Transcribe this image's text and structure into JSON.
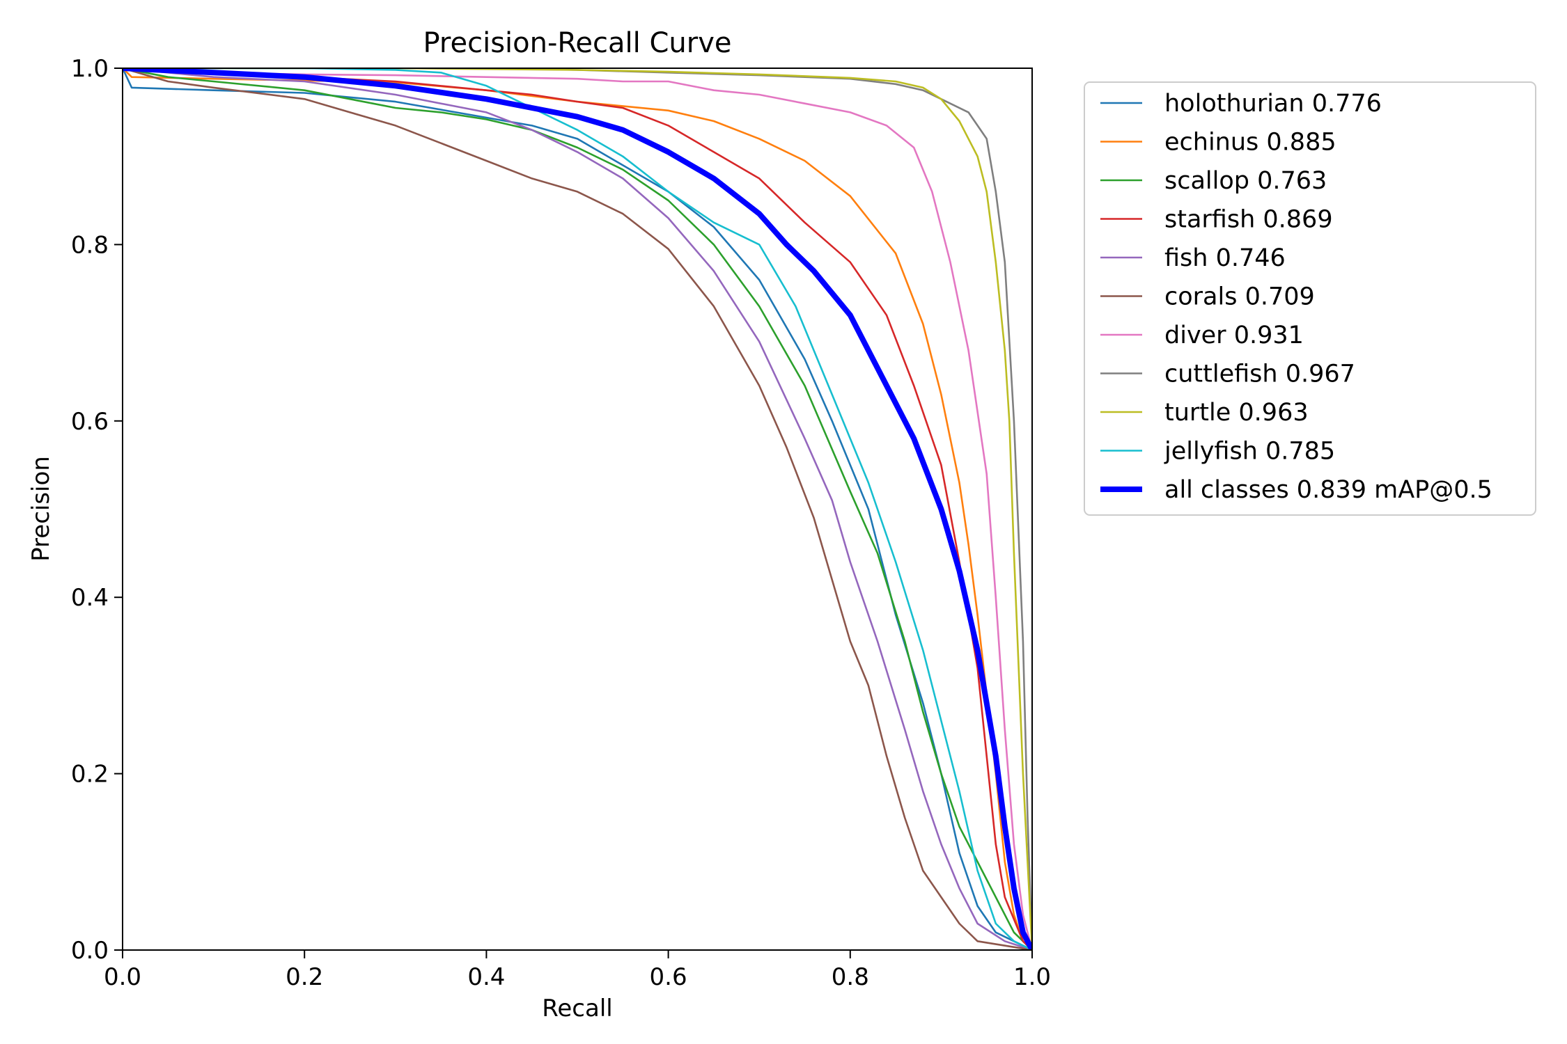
{
  "chart_data": {
    "type": "line",
    "title": "Precision-Recall Curve",
    "xlabel": "Recall",
    "ylabel": "Precision",
    "xlim": [
      0,
      1
    ],
    "ylim": [
      0,
      1
    ],
    "xticks": [
      "0.0",
      "0.2",
      "0.4",
      "0.6",
      "0.8",
      "1.0"
    ],
    "yticks": [
      "0.0",
      "0.2",
      "0.4",
      "0.6",
      "0.8",
      "1.0"
    ],
    "legend_position": "outside-right",
    "series": [
      {
        "name": "holothurian",
        "label": "holothurian 0.776",
        "color": "#1f77b4",
        "thick": false,
        "points": [
          [
            0,
            1.0
          ],
          [
            0.01,
            0.978
          ],
          [
            0.1,
            0.975
          ],
          [
            0.2,
            0.972
          ],
          [
            0.3,
            0.962
          ],
          [
            0.4,
            0.944
          ],
          [
            0.45,
            0.935
          ],
          [
            0.5,
            0.92
          ],
          [
            0.55,
            0.89
          ],
          [
            0.6,
            0.86
          ],
          [
            0.65,
            0.82
          ],
          [
            0.7,
            0.76
          ],
          [
            0.75,
            0.67
          ],
          [
            0.78,
            0.6
          ],
          [
            0.8,
            0.55
          ],
          [
            0.82,
            0.5
          ],
          [
            0.85,
            0.38
          ],
          [
            0.88,
            0.28
          ],
          [
            0.9,
            0.2
          ],
          [
            0.92,
            0.11
          ],
          [
            0.94,
            0.05
          ],
          [
            0.96,
            0.02
          ],
          [
            0.98,
            0.01
          ],
          [
            1.0,
            0.0
          ]
        ]
      },
      {
        "name": "echinus",
        "label": "echinus 0.885",
        "color": "#ff7f0e",
        "thick": false,
        "points": [
          [
            0,
            1.0
          ],
          [
            0.01,
            0.99
          ],
          [
            0.1,
            0.988
          ],
          [
            0.2,
            0.986
          ],
          [
            0.3,
            0.984
          ],
          [
            0.4,
            0.975
          ],
          [
            0.5,
            0.962
          ],
          [
            0.6,
            0.952
          ],
          [
            0.65,
            0.94
          ],
          [
            0.7,
            0.92
          ],
          [
            0.75,
            0.895
          ],
          [
            0.8,
            0.855
          ],
          [
            0.85,
            0.79
          ],
          [
            0.88,
            0.71
          ],
          [
            0.9,
            0.63
          ],
          [
            0.92,
            0.53
          ],
          [
            0.93,
            0.46
          ],
          [
            0.94,
            0.38
          ],
          [
            0.95,
            0.29
          ],
          [
            0.96,
            0.2
          ],
          [
            0.97,
            0.1
          ],
          [
            0.98,
            0.04
          ],
          [
            0.99,
            0.01
          ],
          [
            1.0,
            0.0
          ]
        ]
      },
      {
        "name": "scallop",
        "label": "scallop 0.763",
        "color": "#2ca02c",
        "thick": false,
        "points": [
          [
            0,
            1.0
          ],
          [
            0.05,
            0.99
          ],
          [
            0.1,
            0.985
          ],
          [
            0.2,
            0.975
          ],
          [
            0.25,
            0.965
          ],
          [
            0.3,
            0.955
          ],
          [
            0.35,
            0.95
          ],
          [
            0.4,
            0.942
          ],
          [
            0.45,
            0.93
          ],
          [
            0.5,
            0.91
          ],
          [
            0.55,
            0.885
          ],
          [
            0.6,
            0.85
          ],
          [
            0.65,
            0.8
          ],
          [
            0.7,
            0.73
          ],
          [
            0.75,
            0.64
          ],
          [
            0.8,
            0.52
          ],
          [
            0.83,
            0.45
          ],
          [
            0.86,
            0.35
          ],
          [
            0.88,
            0.27
          ],
          [
            0.9,
            0.2
          ],
          [
            0.92,
            0.14
          ],
          [
            0.95,
            0.08
          ],
          [
            0.98,
            0.02
          ],
          [
            1.0,
            0.0
          ]
        ]
      },
      {
        "name": "starfish",
        "label": "starfish 0.869",
        "color": "#d62728",
        "thick": false,
        "points": [
          [
            0,
            1.0
          ],
          [
            0.1,
            0.995
          ],
          [
            0.2,
            0.99
          ],
          [
            0.3,
            0.985
          ],
          [
            0.4,
            0.975
          ],
          [
            0.45,
            0.97
          ],
          [
            0.5,
            0.962
          ],
          [
            0.55,
            0.955
          ],
          [
            0.6,
            0.935
          ],
          [
            0.65,
            0.905
          ],
          [
            0.7,
            0.875
          ],
          [
            0.75,
            0.825
          ],
          [
            0.8,
            0.78
          ],
          [
            0.84,
            0.72
          ],
          [
            0.87,
            0.64
          ],
          [
            0.9,
            0.55
          ],
          [
            0.92,
            0.44
          ],
          [
            0.94,
            0.32
          ],
          [
            0.95,
            0.22
          ],
          [
            0.96,
            0.12
          ],
          [
            0.97,
            0.06
          ],
          [
            0.99,
            0.01
          ],
          [
            1.0,
            0.0
          ]
        ]
      },
      {
        "name": "fish",
        "label": "fish 0.746",
        "color": "#9467bd",
        "thick": false,
        "points": [
          [
            0,
            1.0
          ],
          [
            0.1,
            0.99
          ],
          [
            0.2,
            0.985
          ],
          [
            0.3,
            0.97
          ],
          [
            0.4,
            0.95
          ],
          [
            0.45,
            0.93
          ],
          [
            0.5,
            0.905
          ],
          [
            0.55,
            0.875
          ],
          [
            0.6,
            0.83
          ],
          [
            0.65,
            0.77
          ],
          [
            0.7,
            0.69
          ],
          [
            0.75,
            0.58
          ],
          [
            0.78,
            0.51
          ],
          [
            0.8,
            0.44
          ],
          [
            0.83,
            0.35
          ],
          [
            0.86,
            0.25
          ],
          [
            0.88,
            0.18
          ],
          [
            0.9,
            0.12
          ],
          [
            0.92,
            0.07
          ],
          [
            0.94,
            0.03
          ],
          [
            0.97,
            0.01
          ],
          [
            1.0,
            0.0
          ]
        ]
      },
      {
        "name": "corals",
        "label": "corals 0.709",
        "color": "#8c564b",
        "thick": false,
        "points": [
          [
            0,
            1.0
          ],
          [
            0.05,
            0.985
          ],
          [
            0.1,
            0.978
          ],
          [
            0.2,
            0.965
          ],
          [
            0.25,
            0.95
          ],
          [
            0.3,
            0.935
          ],
          [
            0.35,
            0.915
          ],
          [
            0.4,
            0.895
          ],
          [
            0.45,
            0.875
          ],
          [
            0.5,
            0.86
          ],
          [
            0.55,
            0.835
          ],
          [
            0.6,
            0.795
          ],
          [
            0.65,
            0.73
          ],
          [
            0.7,
            0.64
          ],
          [
            0.73,
            0.57
          ],
          [
            0.76,
            0.49
          ],
          [
            0.78,
            0.42
          ],
          [
            0.8,
            0.35
          ],
          [
            0.82,
            0.3
          ],
          [
            0.84,
            0.22
          ],
          [
            0.86,
            0.15
          ],
          [
            0.88,
            0.09
          ],
          [
            0.9,
            0.06
          ],
          [
            0.92,
            0.03
          ],
          [
            0.94,
            0.01
          ],
          [
            1.0,
            0.0
          ]
        ]
      },
      {
        "name": "diver",
        "label": "diver 0.931",
        "color": "#e377c2",
        "thick": false,
        "points": [
          [
            0,
            1.0
          ],
          [
            0.1,
            0.995
          ],
          [
            0.2,
            0.993
          ],
          [
            0.3,
            0.992
          ],
          [
            0.4,
            0.99
          ],
          [
            0.5,
            0.988
          ],
          [
            0.55,
            0.985
          ],
          [
            0.6,
            0.985
          ],
          [
            0.65,
            0.975
          ],
          [
            0.7,
            0.97
          ],
          [
            0.75,
            0.96
          ],
          [
            0.8,
            0.95
          ],
          [
            0.84,
            0.935
          ],
          [
            0.87,
            0.91
          ],
          [
            0.89,
            0.86
          ],
          [
            0.91,
            0.78
          ],
          [
            0.93,
            0.68
          ],
          [
            0.95,
            0.54
          ],
          [
            0.96,
            0.4
          ],
          [
            0.97,
            0.25
          ],
          [
            0.98,
            0.12
          ],
          [
            0.99,
            0.04
          ],
          [
            1.0,
            0.0
          ]
        ]
      },
      {
        "name": "cuttlefish",
        "label": "cuttlefish 0.967",
        "color": "#7f7f7f",
        "thick": false,
        "points": [
          [
            0,
            1.0
          ],
          [
            0.3,
            1.0
          ],
          [
            0.4,
            1.0
          ],
          [
            0.5,
            0.998
          ],
          [
            0.6,
            0.995
          ],
          [
            0.7,
            0.992
          ],
          [
            0.8,
            0.988
          ],
          [
            0.85,
            0.982
          ],
          [
            0.88,
            0.975
          ],
          [
            0.9,
            0.965
          ],
          [
            0.93,
            0.95
          ],
          [
            0.95,
            0.92
          ],
          [
            0.96,
            0.86
          ],
          [
            0.97,
            0.78
          ],
          [
            0.98,
            0.6
          ],
          [
            0.99,
            0.35
          ],
          [
            0.995,
            0.15
          ],
          [
            1.0,
            0.0
          ]
        ]
      },
      {
        "name": "turtle",
        "label": "turtle 0.963",
        "color": "#bcbd22",
        "thick": false,
        "points": [
          [
            0,
            1.0
          ],
          [
            0.3,
            1.0
          ],
          [
            0.5,
            0.998
          ],
          [
            0.6,
            0.996
          ],
          [
            0.7,
            0.993
          ],
          [
            0.8,
            0.989
          ],
          [
            0.85,
            0.985
          ],
          [
            0.88,
            0.978
          ],
          [
            0.9,
            0.965
          ],
          [
            0.92,
            0.94
          ],
          [
            0.94,
            0.9
          ],
          [
            0.95,
            0.86
          ],
          [
            0.96,
            0.78
          ],
          [
            0.97,
            0.68
          ],
          [
            0.975,
            0.6
          ],
          [
            0.98,
            0.45
          ],
          [
            0.99,
            0.2
          ],
          [
            1.0,
            0.0
          ]
        ]
      },
      {
        "name": "jellyfish",
        "label": "jellyfish 0.785",
        "color": "#17becf",
        "thick": false,
        "points": [
          [
            0,
            1.0
          ],
          [
            0.2,
            1.0
          ],
          [
            0.3,
            0.998
          ],
          [
            0.35,
            0.995
          ],
          [
            0.4,
            0.98
          ],
          [
            0.45,
            0.955
          ],
          [
            0.5,
            0.93
          ],
          [
            0.55,
            0.9
          ],
          [
            0.6,
            0.86
          ],
          [
            0.65,
            0.825
          ],
          [
            0.7,
            0.8
          ],
          [
            0.74,
            0.73
          ],
          [
            0.78,
            0.63
          ],
          [
            0.82,
            0.53
          ],
          [
            0.85,
            0.44
          ],
          [
            0.88,
            0.34
          ],
          [
            0.9,
            0.26
          ],
          [
            0.92,
            0.18
          ],
          [
            0.94,
            0.09
          ],
          [
            0.96,
            0.03
          ],
          [
            0.98,
            0.01
          ],
          [
            1.0,
            0.0
          ]
        ]
      },
      {
        "name": "all-classes",
        "label": "all classes 0.839 mAP@0.5",
        "color": "#0000ff",
        "thick": true,
        "points": [
          [
            0,
            1.0
          ],
          [
            0.1,
            0.995
          ],
          [
            0.2,
            0.99
          ],
          [
            0.3,
            0.98
          ],
          [
            0.4,
            0.965
          ],
          [
            0.45,
            0.955
          ],
          [
            0.5,
            0.945
          ],
          [
            0.55,
            0.93
          ],
          [
            0.6,
            0.905
          ],
          [
            0.65,
            0.875
          ],
          [
            0.7,
            0.835
          ],
          [
            0.73,
            0.8
          ],
          [
            0.76,
            0.77
          ],
          [
            0.8,
            0.72
          ],
          [
            0.84,
            0.64
          ],
          [
            0.87,
            0.58
          ],
          [
            0.9,
            0.5
          ],
          [
            0.92,
            0.43
          ],
          [
            0.94,
            0.34
          ],
          [
            0.96,
            0.22
          ],
          [
            0.97,
            0.14
          ],
          [
            0.98,
            0.07
          ],
          [
            0.99,
            0.02
          ],
          [
            1.0,
            0.0
          ]
        ]
      }
    ]
  }
}
